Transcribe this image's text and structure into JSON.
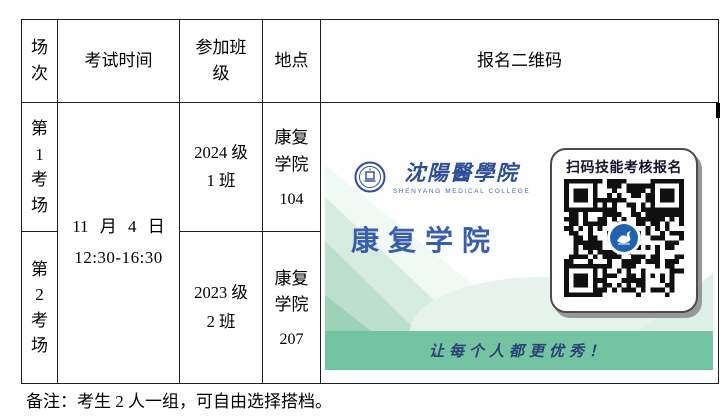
{
  "table": {
    "headers": {
      "session": "场次",
      "time": "考试时间",
      "class": "参加班级",
      "location": "地点",
      "qr": "报名二维码"
    },
    "time_line1": "11 月 4 日",
    "time_line2": "12:30-16:30",
    "rows": [
      {
        "session": "第1考场",
        "class_line1": "2024 级",
        "class_line2": "1 班",
        "location_name": "康复学院",
        "room": "104"
      },
      {
        "session": "第2考场",
        "class_line1": "2023 级",
        "class_line2": "2 班",
        "location_name": "康复学院",
        "room": "207"
      }
    ]
  },
  "poster": {
    "college_logo_text": "沈陽醫學院",
    "college_logo_sub": "SHENYANG MEDICAL COLLEGE",
    "college_name": "康复学院",
    "qr_caption": "扫码技能考核报名",
    "slogan": "让每个人都更优秀！",
    "colors": {
      "strip_green": "#74c3a3",
      "brand_blue": "#3a5dae",
      "logo_blue": "#2e4e96",
      "slogan_navy": "#2b4273",
      "qr_center_blue": "#1f63b0"
    }
  },
  "note": "备注：考生 2 人一组，可自由选择搭档。"
}
